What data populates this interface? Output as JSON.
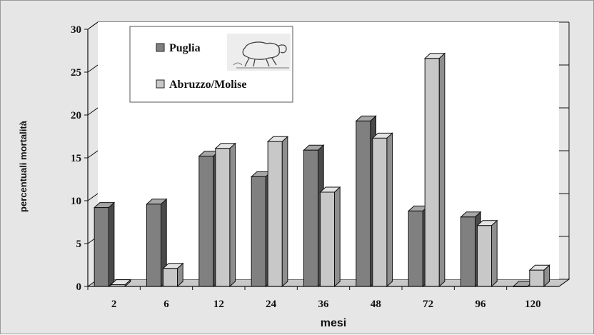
{
  "chart_data": {
    "type": "bar",
    "title": "",
    "xlabel": "mesi",
    "ylabel": "percentuali mortalità",
    "ylim": [
      0,
      30
    ],
    "yticks": [
      "0",
      "5",
      "10",
      "15",
      "20",
      "25",
      "30"
    ],
    "categories": [
      "2",
      "6",
      "12",
      "24",
      "36",
      "48",
      "72",
      "96",
      "120"
    ],
    "series": [
      {
        "name": "Puglia",
        "values": [
          9.2,
          9.6,
          15.2,
          12.8,
          15.9,
          19.3,
          8.8,
          8.1,
          0.0
        ],
        "color": "#808080"
      },
      {
        "name": "Abruzzo/Molise",
        "values": [
          0.2,
          2.1,
          16.1,
          16.9,
          11.0,
          17.3,
          26.6,
          7.1,
          1.9
        ],
        "color": "#c8c8c8"
      }
    ],
    "grid": true,
    "legend_position": "top-left",
    "legend_icon": "sheep-drawing-icon",
    "style": "3d-bar"
  }
}
